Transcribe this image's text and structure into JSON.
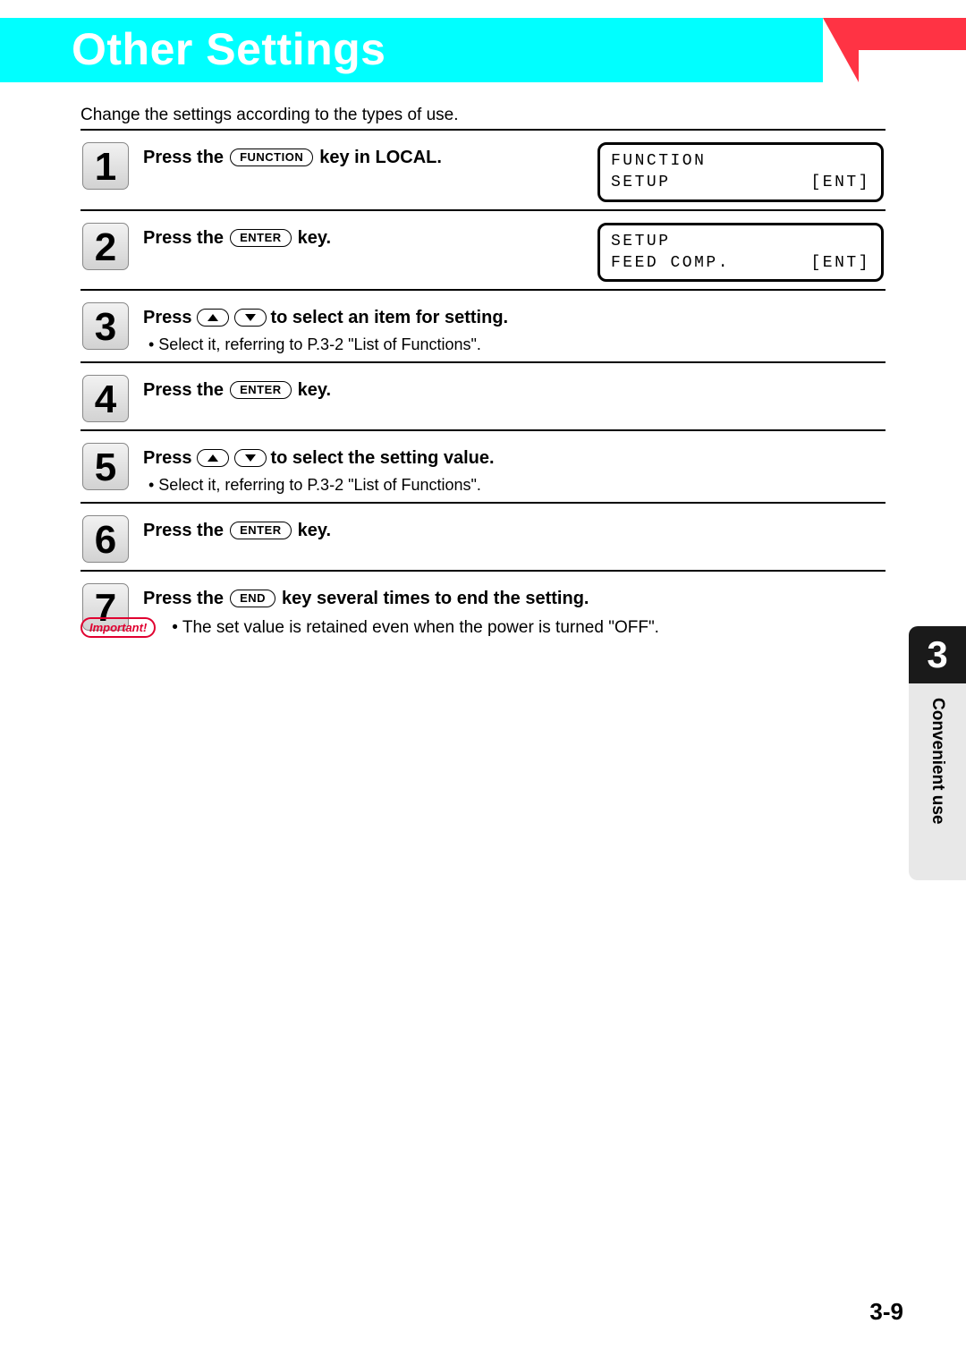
{
  "header": {
    "title": "Other Settings"
  },
  "intro": "Change the settings according to the types of use.",
  "keys": {
    "function": "FUNCTION",
    "enter": "ENTER",
    "end": "END"
  },
  "steps": [
    {
      "num": "1",
      "parts": [
        "Press the ",
        {
          "key": "function"
        },
        " key in LOCAL."
      ],
      "lcd": {
        "line1_left": "FUNCTION",
        "line1_right": "",
        "line2_left": "SETUP",
        "line2_right": "[ENT]"
      }
    },
    {
      "num": "2",
      "parts": [
        "Press the ",
        {
          "key": "enter"
        },
        " key."
      ],
      "lcd": {
        "line1_left": "SETUP",
        "line1_right": "",
        "line2_left": "FEED COMP.",
        "line2_right": "[ENT]"
      }
    },
    {
      "num": "3",
      "parts": [
        "Press ",
        {
          "arrow": "up"
        },
        {
          "arrow": "down"
        },
        " to select an item for setting."
      ],
      "sub": "• Select it, referring to P.3-2 \"List of Functions\"."
    },
    {
      "num": "4",
      "parts": [
        "Press the ",
        {
          "key": "enter"
        },
        " key."
      ]
    },
    {
      "num": "5",
      "parts": [
        "Press ",
        {
          "arrow": "up"
        },
        {
          "arrow": "down"
        },
        " to select the setting value."
      ],
      "sub": "• Select it, referring to P.3-2 \"List of Functions\"."
    },
    {
      "num": "6",
      "parts": [
        "Press the ",
        {
          "key": "enter"
        },
        " key."
      ]
    },
    {
      "num": "7",
      "parts": [
        "Press the ",
        {
          "key": "end"
        },
        " key several times to end the setting."
      ]
    }
  ],
  "important": {
    "label": "Important!",
    "text": "•  The set value is retained even when the power is turned \"OFF\"."
  },
  "side_tab": {
    "num": "3",
    "label": "Convenient use"
  },
  "page_number": "3-9",
  "colors": {
    "cyan": "#00ffff",
    "accent": "#ff3344",
    "important_border": "#e00030",
    "tab_bg": "#1a1a1a",
    "tab_label_bg": "#e8e8e8"
  }
}
